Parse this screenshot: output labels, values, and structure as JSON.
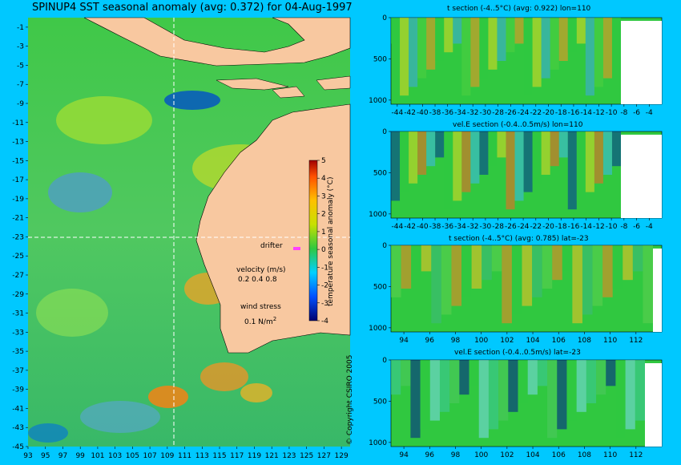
{
  "chart_data": [
    {
      "type": "heatmap",
      "title": "SPINUP4 SST seasonal anomaly (avg: 0.372) for 04-Aug-1997",
      "x_ticks": [
        "93",
        "95",
        "97",
        "99",
        "101",
        "103",
        "105",
        "107",
        "109",
        "111",
        "113",
        "115",
        "117",
        "119",
        "121",
        "123",
        "125",
        "127",
        "129"
      ],
      "y_ticks": [
        "-1",
        "-3",
        "-5",
        "-7",
        "-9",
        "-11",
        "-13",
        "-15",
        "-17",
        "-19",
        "-21",
        "-23",
        "-25",
        "-27",
        "-29",
        "-31",
        "-33",
        "-35",
        "-37",
        "-39",
        "-41",
        "-43",
        "-45"
      ],
      "xlim": [
        93,
        130
      ],
      "ylim": [
        -45,
        0
      ],
      "colorbar": {
        "label": "temperature seasonal anomaly (°C)",
        "ticks": [
          "5",
          "4",
          "3",
          "2",
          "1",
          "0",
          "-1",
          "-2",
          "-3",
          "-4"
        ],
        "range": [
          -4,
          5
        ]
      },
      "annotations": {
        "drifter": "drifter",
        "velocity_title": "velocity (m/s)",
        "velocity_scale": "0.2 0.4 0.8",
        "wind_title": "wind stress",
        "wind_scale": "0.1 N/m",
        "wind_exp": "2"
      },
      "crosshair": {
        "lon": 110,
        "lat": -23
      }
    },
    {
      "type": "heatmap",
      "title": "t section (-4..5°C) (avg: 0.922) lon=110",
      "x_ticks": [
        "-44",
        "-42",
        "-40",
        "-38",
        "-36",
        "-34",
        "-32",
        "-30",
        "-28",
        "-26",
        "-24",
        "-22",
        "-20",
        "-18",
        "-16",
        "-14",
        "-12",
        "-10",
        "-8",
        "-6",
        "-4"
      ],
      "y_ticks": [
        "0",
        "500",
        "1000"
      ],
      "xlim": [
        -45,
        -2
      ],
      "ylim": [
        1050,
        0
      ]
    },
    {
      "type": "heatmap",
      "title": "vel.E section (-0.4..0.5m/s) lon=110",
      "x_ticks": [
        "-44",
        "-42",
        "-40",
        "-38",
        "-36",
        "-34",
        "-32",
        "-30",
        "-28",
        "-26",
        "-24",
        "-22",
        "-20",
        "-18",
        "-16",
        "-14",
        "-12",
        "-10",
        "-8",
        "-6",
        "-4"
      ],
      "y_ticks": [
        "0",
        "500",
        "1000"
      ],
      "xlim": [
        -45,
        -2
      ],
      "ylim": [
        1050,
        0
      ]
    },
    {
      "type": "heatmap",
      "title": "t section (-4..5°C) (avg: 0.785) lat=-23",
      "x_ticks": [
        "94",
        "96",
        "98",
        "100",
        "102",
        "104",
        "106",
        "108",
        "110",
        "112"
      ],
      "y_ticks": [
        "0",
        "500",
        "1000"
      ],
      "xlim": [
        93,
        114
      ],
      "ylim": [
        1050,
        0
      ]
    },
    {
      "type": "heatmap",
      "title": "vel.E section (-0.4..0.5m/s) lat=-23",
      "x_ticks": [
        "94",
        "96",
        "98",
        "100",
        "102",
        "104",
        "106",
        "108",
        "110",
        "112"
      ],
      "y_ticks": [
        "0",
        "500",
        "1000"
      ],
      "xlim": [
        93,
        114
      ],
      "ylim": [
        1050,
        0
      ]
    }
  ],
  "copyright": "© Copyright CSIRO 2005",
  "colors": {
    "background": "#00c8ff",
    "land": "#f8c8a0",
    "ocean_base": "#3cc85a",
    "drifter": "#ff40ff"
  }
}
